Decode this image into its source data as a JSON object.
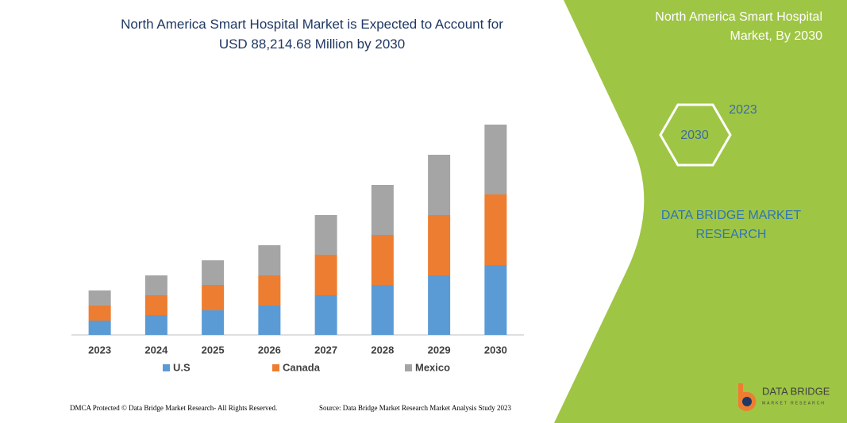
{
  "chart_data": {
    "type": "bar",
    "stacked": true,
    "title": "North America Smart Hospital Market is Expected to Account for USD 88,214.68 Million by 2030",
    "categories": [
      "2023",
      "2024",
      "2025",
      "2026",
      "2027",
      "2028",
      "2029",
      "2030"
    ],
    "series": [
      {
        "name": "U.S",
        "color": "#5b9bd5",
        "values": [
          18,
          25,
          31,
          37,
          50,
          63,
          75,
          88
        ]
      },
      {
        "name": "Canada",
        "color": "#ed7d31",
        "values": [
          19,
          25,
          32,
          38,
          51,
          63,
          76,
          89
        ]
      },
      {
        "name": "Mexico",
        "color": "#a5a5a5",
        "values": [
          19,
          25,
          31,
          38,
          50,
          63,
          76,
          88
        ]
      }
    ]
  },
  "side_panel": {
    "title": "North America Smart Hospital Market, By 2030",
    "hexagons": [
      "2023",
      "2030"
    ],
    "brand": "DATA BRIDGE MARKET RESEARCH"
  },
  "logo": {
    "name": "DATA BRIDGE",
    "tagline": "MARKET RESEARCH"
  },
  "footer": {
    "copyright": "DMCA Protected © Data Bridge Market Research-  All Rights Reserved.",
    "source": "Source: Data Bridge Market Research  Market Analysis Study 2023"
  }
}
